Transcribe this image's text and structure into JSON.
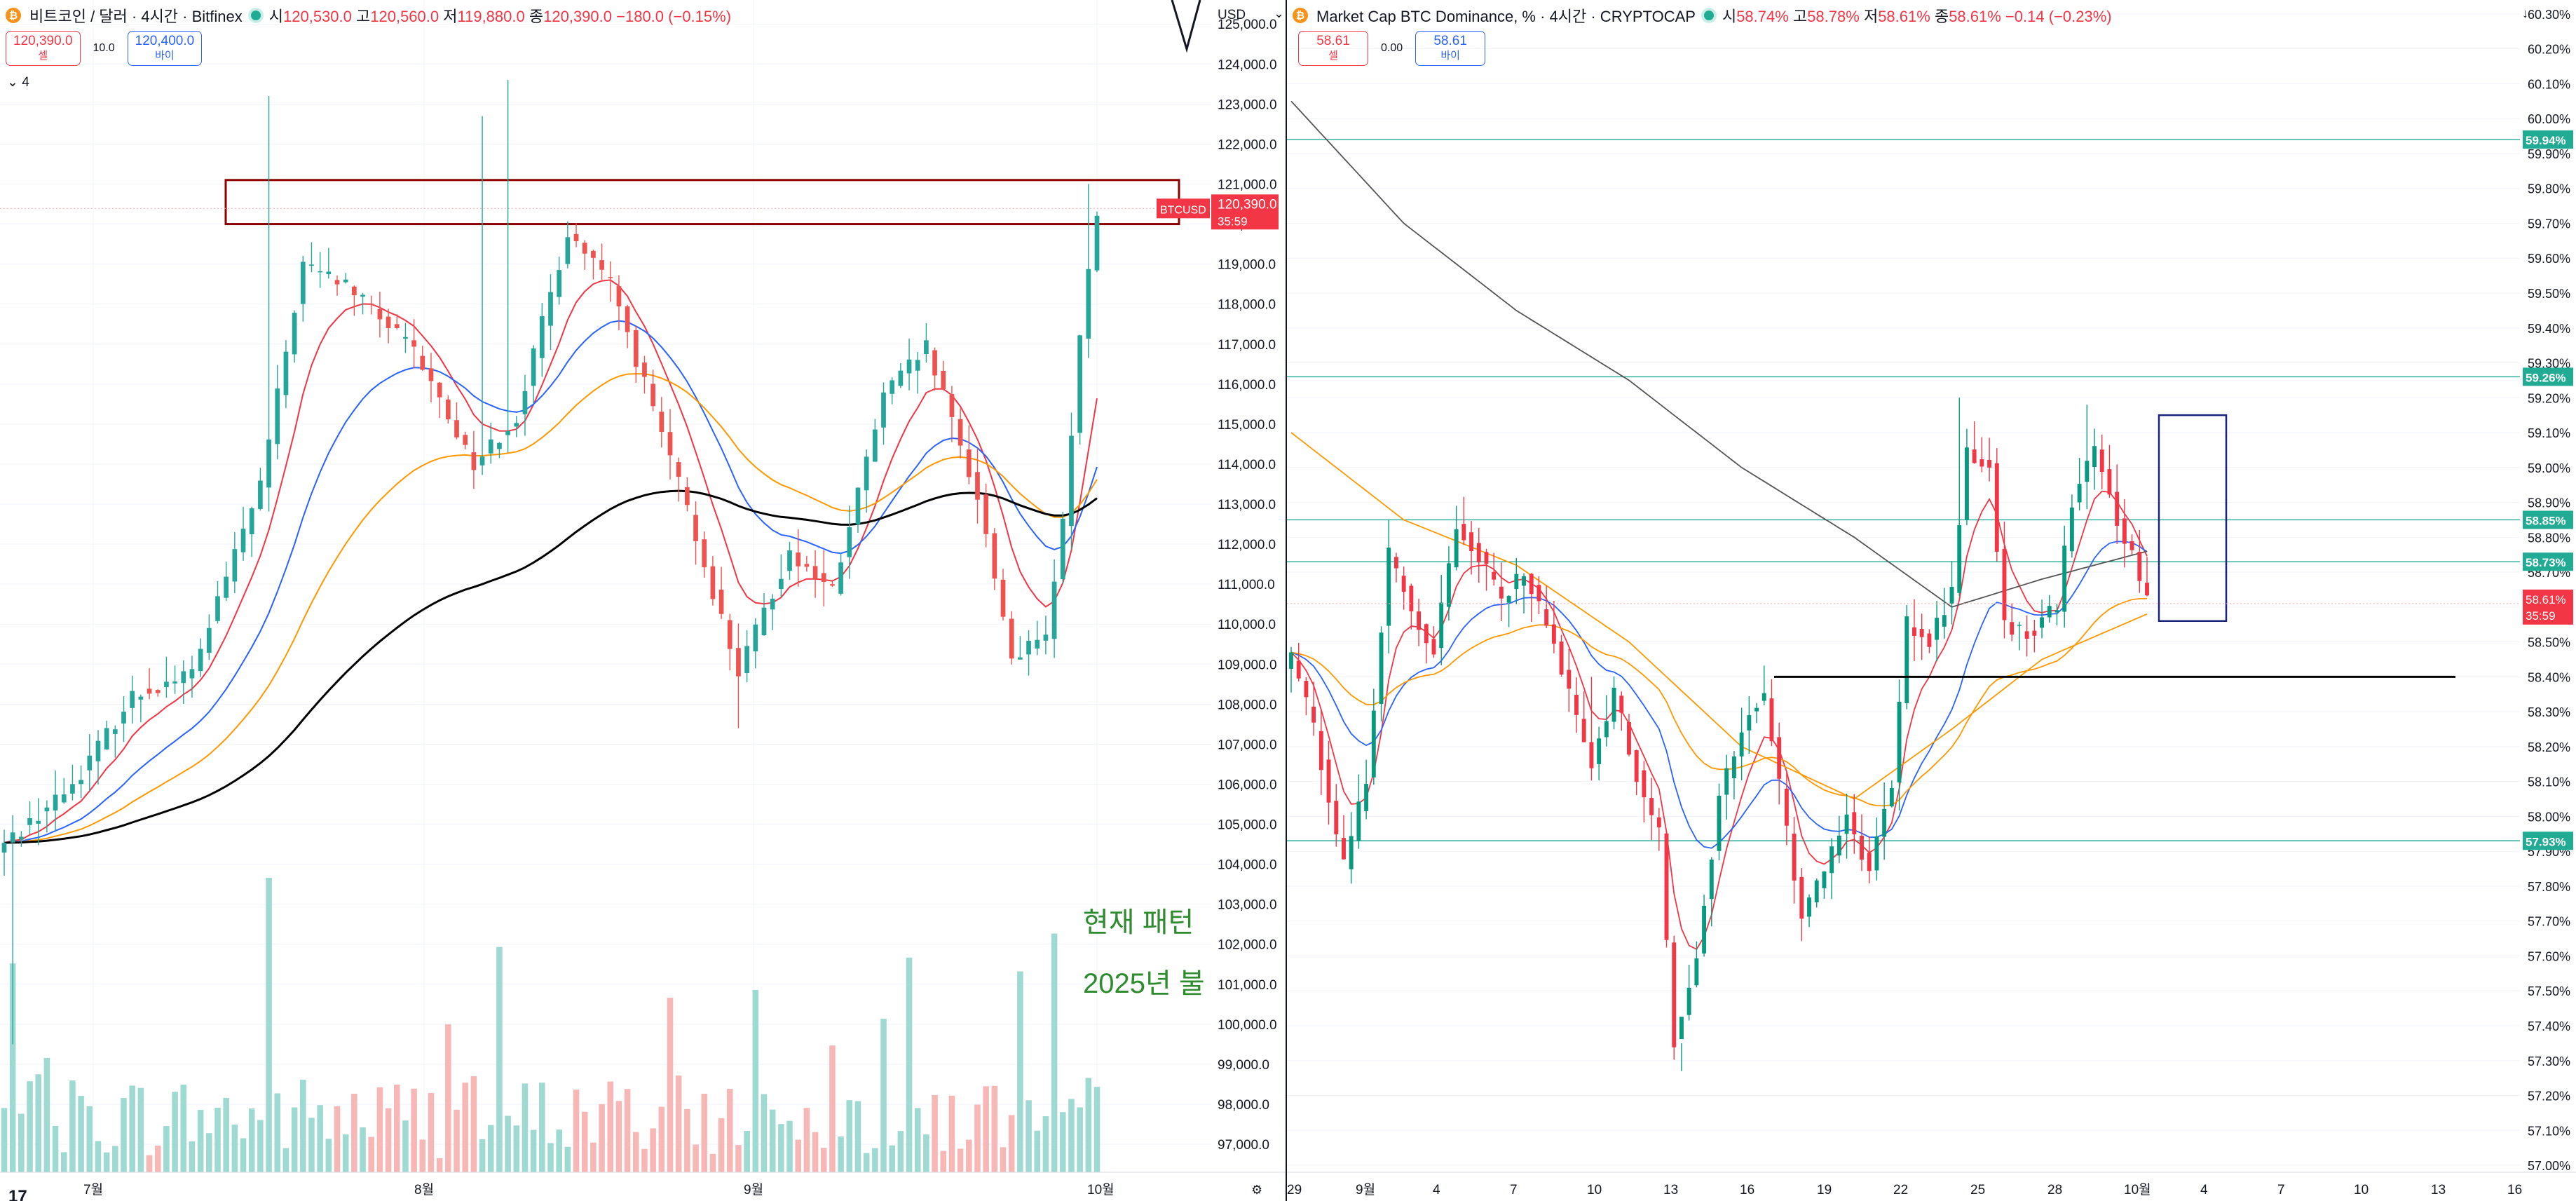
{
  "left_chart": {
    "legend": {
      "symbol_icon": "bitcoin-icon",
      "title": "비트코인 / 달러 · 4시간 · Bitfinex",
      "open_label": "시",
      "open_value": "120,530.0",
      "high_label": "고",
      "high_value": "120,560.0",
      "low_label": "저",
      "low_value": "119,880.0",
      "close_label": "종",
      "close_value": "120,390.0",
      "change": "−180.0 (−0.15%)"
    },
    "sell_price": "120,390.0",
    "sell_label": "셀",
    "buy_price": "120,400.0",
    "buy_label": "바이",
    "spread": "10.0",
    "indicator_toggle": "4",
    "currency": "USD",
    "symbol_tag": "BTCUSD",
    "last_price": "120,390.0",
    "countdown": "35:59",
    "annotation_line1": "현재 패턴",
    "annotation_line2": "2025년 불",
    "chart_data": {
      "type": "candlestick",
      "x_labels": [
        "7월",
        "8월",
        "9월",
        "10월"
      ],
      "y_ticks": [
        "125,000.0",
        "124,000.0",
        "123,000.0",
        "122,000.0",
        "121,000.0",
        "120,000.0",
        "119,000.0",
        "118,000.0",
        "117,000.0",
        "116,000.0",
        "115,000.0",
        "114,000.0",
        "113,000.0",
        "112,000.0",
        "111,000.0",
        "110,000.0",
        "109,000.0",
        "108,000.0",
        "107,000.0",
        "106,000.0",
        "105,000.0",
        "104,000.0",
        "103,000.0",
        "102,000.0",
        "101,000.0",
        "100,000.0",
        "99,000.0",
        "98,000.0",
        "97,000.0"
      ],
      "ylim": [
        96300,
        125600
      ],
      "close_anchors": [
        [
          0,
          104500
        ],
        [
          8,
          106000
        ],
        [
          15,
          108200
        ],
        [
          22,
          108800
        ],
        [
          30,
          113500
        ],
        [
          35,
          119000
        ],
        [
          40,
          118500
        ],
        [
          48,
          116800
        ],
        [
          55,
          114000
        ],
        [
          60,
          115200
        ],
        [
          66,
          119800
        ],
        [
          71,
          118500
        ],
        [
          79,
          113500
        ],
        [
          86,
          108800
        ],
        [
          92,
          111800
        ],
        [
          97,
          110800
        ],
        [
          103,
          115700
        ],
        [
          108,
          116900
        ],
        [
          114,
          113200
        ],
        [
          118,
          109200
        ],
        [
          122,
          109600
        ],
        [
          124,
          112500
        ],
        [
          126,
          117200
        ],
        [
          128,
          120400
        ]
      ],
      "high_spikes": [
        [
          31,
          123200
        ],
        [
          56,
          122700
        ],
        [
          59,
          123600
        ],
        [
          127,
          121000
        ]
      ],
      "low_spikes": [
        [
          1,
          99500
        ],
        [
          86,
          107400
        ]
      ],
      "resistance_zone": [
        120000,
        121100
      ],
      "series": [
        {
          "name": "",
          "color": "#f23645"
        },
        {
          "name": "",
          "color": "#2962ff"
        },
        {
          "name": "",
          "color": "#ff9800"
        },
        {
          "name": "",
          "color": "#000000"
        }
      ],
      "colors": {
        "up": "#26a69a",
        "down": "#ef5350",
        "zone": "#8b0000"
      }
    }
  },
  "right_chart": {
    "legend": {
      "symbol_icon": "bitcoin-icon",
      "title": "Market Cap BTC Dominance, % · 4시간 · CRYPTOCAP",
      "open_label": "시",
      "open_value": "58.74%",
      "high_label": "고",
      "high_value": "58.78%",
      "low_label": "저",
      "low_value": "58.61%",
      "close_label": "종",
      "close_value": "58.61%",
      "change": "−0.14 (−0.23%)"
    },
    "sell_price": "58.61",
    "sell_label": "셀",
    "buy_price": "58.61",
    "buy_label": "바이",
    "spread": "0.00",
    "last_price": "58.61%",
    "countdown": "35:59",
    "chart_data": {
      "type": "candlestick",
      "x_labels": [
        "29",
        "9월",
        "4",
        "7",
        "10",
        "13",
        "16",
        "19",
        "22",
        "25",
        "28",
        "10월",
        "4",
        "7",
        "10",
        "13",
        "16"
      ],
      "y_ticks": [
        "60.30%",
        "60.20%",
        "60.10%",
        "60.00%",
        "59.90%",
        "59.80%",
        "59.70%",
        "59.60%",
        "59.50%",
        "59.40%",
        "59.30%",
        "59.20%",
        "59.10%",
        "59.00%",
        "58.90%",
        "58.80%",
        "58.70%",
        "58.60%",
        "58.50%",
        "58.40%",
        "58.30%",
        "58.20%",
        "58.10%",
        "58.00%",
        "57.90%",
        "57.80%",
        "57.70%",
        "57.60%",
        "57.50%",
        "57.40%",
        "57.30%",
        "57.20%",
        "57.10%",
        "57.00%"
      ],
      "ylim": [
        56.98,
        60.34
      ],
      "close_anchors": [
        [
          0,
          58.45
        ],
        [
          3,
          58.25
        ],
        [
          5,
          58.05
        ],
        [
          7,
          57.85
        ],
        [
          10,
          58.1
        ],
        [
          13,
          58.75
        ],
        [
          16,
          58.6
        ],
        [
          19,
          58.48
        ],
        [
          22,
          58.85
        ],
        [
          25,
          58.75
        ],
        [
          28,
          58.62
        ],
        [
          31,
          58.7
        ],
        [
          35,
          58.5
        ],
        [
          38,
          58.28
        ],
        [
          40,
          58.15
        ],
        [
          43,
          58.35
        ],
        [
          46,
          58.12
        ],
        [
          49,
          57.95
        ],
        [
          51,
          57.35
        ],
        [
          54,
          57.6
        ],
        [
          57,
          58.05
        ],
        [
          61,
          58.3
        ],
        [
          63,
          58.35
        ],
        [
          66,
          57.95
        ],
        [
          68,
          57.7
        ],
        [
          71,
          57.85
        ],
        [
          74,
          58.0
        ],
        [
          77,
          57.85
        ],
        [
          80,
          58.1
        ],
        [
          82,
          58.55
        ],
        [
          85,
          58.5
        ],
        [
          88,
          58.65
        ],
        [
          90,
          59.05
        ],
        [
          93,
          59.0
        ],
        [
          95,
          58.55
        ],
        [
          98,
          58.52
        ],
        [
          102,
          58.6
        ],
        [
          104,
          58.9
        ],
        [
          107,
          59.05
        ],
        [
          110,
          58.85
        ],
        [
          112,
          58.75
        ],
        [
          114,
          58.61
        ]
      ],
      "high_spikes": [
        [
          40,
          58.4
        ],
        [
          52,
          57.35
        ],
        [
          89,
          59.2
        ],
        [
          106,
          59.18
        ]
      ],
      "low_spikes": [
        [
          52,
          57.27
        ]
      ],
      "price_lines": [
        {
          "value": 59.94,
          "label": "59.94%"
        },
        {
          "value": 59.26,
          "label": "59.26%"
        },
        {
          "value": 58.85,
          "label": "58.85%"
        },
        {
          "value": 58.73,
          "label": "58.73%"
        },
        {
          "value": 57.93,
          "label": "57.93%"
        }
      ],
      "support_line": 58.4,
      "highlight_box": [
        58.56,
        59.15
      ],
      "series": [
        {
          "name": "",
          "color": "#f23645"
        },
        {
          "name": "",
          "color": "#2962ff"
        },
        {
          "name": "",
          "color": "#ff9800"
        },
        {
          "name": "",
          "color": "#555555"
        }
      ],
      "colors": {
        "up": "#089981",
        "down": "#f23645",
        "line": "#22ab94",
        "box": "#1a237e"
      }
    }
  }
}
